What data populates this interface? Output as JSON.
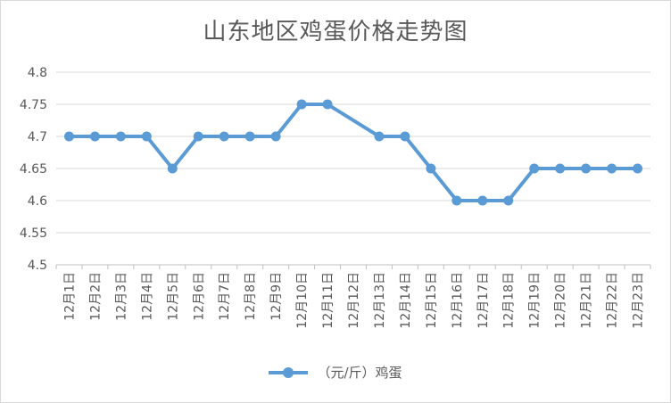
{
  "chart_data": {
    "type": "line",
    "title": "山东地区鸡蛋价格走势图",
    "categories": [
      "12月1日",
      "12月2日",
      "12月3日",
      "12月4日",
      "12月5日",
      "12月6日",
      "12月7日",
      "12月8日",
      "12月9日",
      "12月10日",
      "12月11日",
      "12月12日",
      "12月13日",
      "12月14日",
      "12月15日",
      "12月16日",
      "12月17日",
      "12月18日",
      "12月19日",
      "12月20日",
      "12月21日",
      "12月22日",
      "12月23日"
    ],
    "series": [
      {
        "name": "（元/斤）鸡蛋",
        "color": "#5b9bd5",
        "values": [
          4.7,
          4.7,
          4.7,
          4.7,
          4.65,
          4.7,
          4.7,
          4.7,
          4.7,
          4.75,
          4.75,
          null,
          4.7,
          4.7,
          4.65,
          4.6,
          4.6,
          4.6,
          4.65,
          4.65,
          4.65,
          4.65,
          4.65
        ]
      }
    ],
    "ylim": [
      4.5,
      4.8
    ],
    "yticks": [
      4.5,
      4.55,
      4.6,
      4.65,
      4.7,
      4.75,
      4.8
    ],
    "ytick_labels": [
      "4.5",
      "4.55",
      "4.6",
      "4.65",
      "4.7",
      "4.75",
      "4.8"
    ],
    "grid": true,
    "legend_position": "bottom"
  }
}
